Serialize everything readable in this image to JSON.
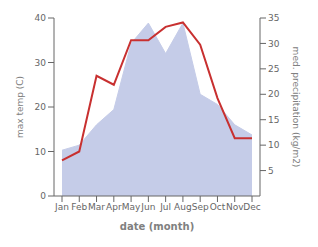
{
  "chart_data": {
    "type": "line",
    "categories": [
      "Jan",
      "Feb",
      "Mar",
      "Apr",
      "May",
      "Jun",
      "Jul",
      "Aug",
      "Sep",
      "Oct",
      "Nov",
      "Dec"
    ],
    "xlabel": "date (month)",
    "ylabel": "max temp (C)",
    "y2label": "med. precipitation (kg/m2)",
    "ylim": [
      0,
      40
    ],
    "yticks": [
      0,
      10,
      20,
      30,
      40
    ],
    "y2lim": [
      0,
      35
    ],
    "y2ticks": [
      5,
      10,
      15,
      20,
      25,
      30,
      35
    ],
    "grid": false,
    "series": [
      {
        "type": "area",
        "axis": "y2",
        "color": "#c5cce8",
        "values": [
          9,
          10,
          14,
          17,
          30,
          34,
          28,
          34,
          20,
          18,
          14,
          12
        ]
      },
      {
        "type": "line",
        "color": "#c83030",
        "values": [
          8,
          10,
          27,
          25,
          35,
          35,
          38,
          39,
          34,
          22,
          13,
          13
        ]
      }
    ]
  }
}
